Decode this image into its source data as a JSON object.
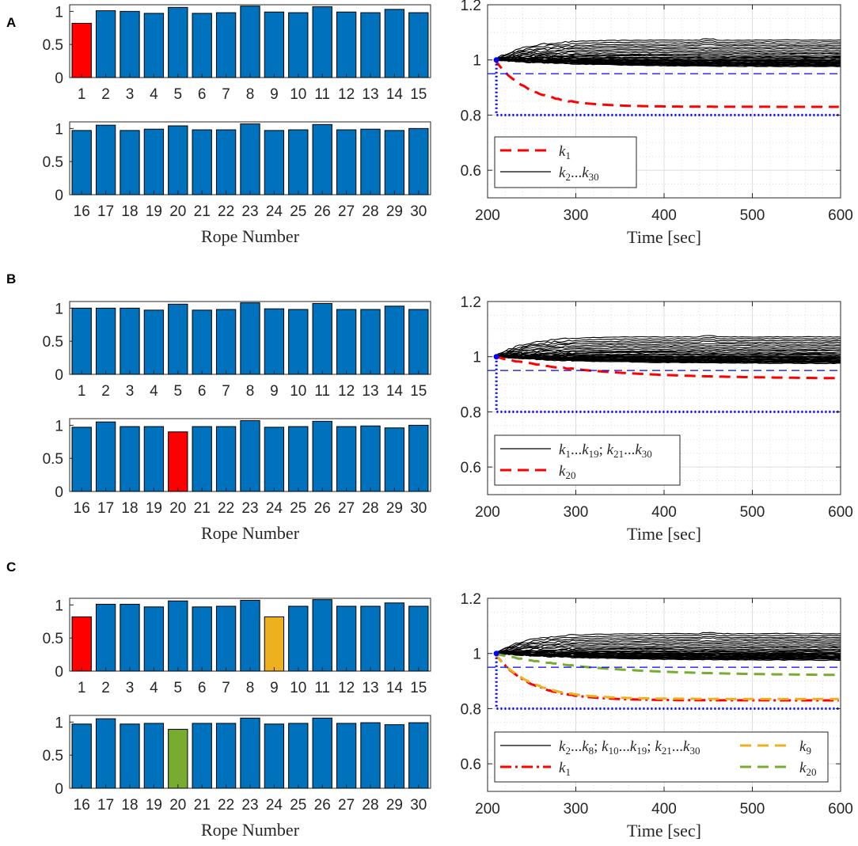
{
  "chart_data": [
    {
      "panel": "A",
      "type": "bar",
      "xlabel": "Rope Number",
      "yticks": [
        "0",
        "0.5",
        "1"
      ],
      "ylim": [
        0,
        1.1
      ],
      "top_categories": [
        "1",
        "2",
        "3",
        "4",
        "5",
        "6",
        "7",
        "8",
        "9",
        "10",
        "11",
        "12",
        "13",
        "14",
        "15"
      ],
      "top_values": [
        0.82,
        1.01,
        1.0,
        0.97,
        1.06,
        0.97,
        0.98,
        1.08,
        0.99,
        0.98,
        1.07,
        0.99,
        0.98,
        1.03,
        0.98
      ],
      "bottom_categories": [
        "16",
        "17",
        "18",
        "19",
        "20",
        "21",
        "22",
        "23",
        "24",
        "25",
        "26",
        "27",
        "28",
        "29",
        "30"
      ],
      "bottom_values": [
        0.97,
        1.05,
        0.97,
        0.99,
        1.04,
        0.98,
        0.98,
        1.07,
        0.97,
        0.98,
        1.06,
        0.98,
        0.99,
        0.97,
        1.0
      ],
      "highlights": [
        {
          "rope": "1",
          "color": "#ff0000"
        }
      ],
      "line": {
        "type": "line",
        "xlabel": "Time [sec]",
        "xlim": [
          200,
          600
        ],
        "ylim": [
          0.5,
          1.2
        ],
        "xticks": [
          "200",
          "300",
          "400",
          "500",
          "600"
        ],
        "yticks": [
          "0.6",
          "0.8",
          "1",
          "1.2"
        ],
        "upper_threshold": 0.95,
        "lower_threshold": 0.8,
        "legend": [
          {
            "style": "dash",
            "color": "#ff0000",
            "base": "k",
            "sub": "1"
          },
          {
            "style": "solid",
            "color": "#000000",
            "base": "k",
            "sub": "2",
            "tail_base": "k",
            "tail_sub": "30"
          }
        ],
        "series": [
          {
            "name": "k1",
            "color": "#ff0000",
            "style": "dash",
            "final": 0.83
          }
        ]
      }
    },
    {
      "panel": "B",
      "type": "bar",
      "xlabel": "Rope Number",
      "yticks": [
        "0",
        "0.5",
        "1"
      ],
      "ylim": [
        0,
        1.1
      ],
      "top_categories": [
        "1",
        "2",
        "3",
        "4",
        "5",
        "6",
        "7",
        "8",
        "9",
        "10",
        "11",
        "12",
        "13",
        "14",
        "15"
      ],
      "top_values": [
        1.0,
        1.0,
        1.0,
        0.97,
        1.06,
        0.97,
        0.98,
        1.08,
        0.99,
        0.98,
        1.07,
        0.98,
        0.98,
        1.03,
        0.98
      ],
      "bottom_categories": [
        "16",
        "17",
        "18",
        "19",
        "20",
        "21",
        "22",
        "23",
        "24",
        "25",
        "26",
        "27",
        "28",
        "29",
        "30"
      ],
      "bottom_values": [
        0.97,
        1.05,
        0.98,
        0.98,
        0.9,
        0.98,
        0.98,
        1.07,
        0.97,
        0.98,
        1.06,
        0.98,
        0.99,
        0.96,
        1.0
      ],
      "highlights": [
        {
          "rope": "20",
          "color": "#ff0000"
        }
      ],
      "line": {
        "type": "line",
        "xlabel": "Time [sec]",
        "xlim": [
          200,
          600
        ],
        "ylim": [
          0.5,
          1.2
        ],
        "xticks": [
          "200",
          "300",
          "400",
          "500",
          "600"
        ],
        "yticks": [
          "0.6",
          "0.8",
          "1",
          "1.2"
        ],
        "upper_threshold": 0.95,
        "lower_threshold": 0.8,
        "legend": [
          {
            "style": "solid",
            "color": "#000000",
            "base": "k",
            "sub": "1",
            "tail_base": "k",
            "tail_sub": "19",
            "extra": "; ",
            "extra_base": "k",
            "extra_sub": "21",
            "extra_tail_base": "k",
            "extra_tail_sub": "30"
          },
          {
            "style": "dash",
            "color": "#ff0000",
            "base": "k",
            "sub": "20"
          }
        ],
        "series": [
          {
            "name": "k20",
            "color": "#ff0000",
            "style": "dash",
            "final": 0.92
          }
        ]
      }
    },
    {
      "panel": "C",
      "type": "bar",
      "xlabel": "Rope Number",
      "yticks": [
        "0",
        "0.5",
        "1"
      ],
      "ylim": [
        0,
        1.1
      ],
      "top_categories": [
        "1",
        "2",
        "3",
        "4",
        "5",
        "6",
        "7",
        "8",
        "9",
        "10",
        "11",
        "12",
        "13",
        "14",
        "15"
      ],
      "top_values": [
        0.82,
        1.01,
        1.01,
        0.97,
        1.06,
        0.97,
        0.98,
        1.07,
        0.82,
        0.98,
        1.08,
        0.98,
        0.98,
        1.03,
        0.98
      ],
      "bottom_categories": [
        "16",
        "17",
        "18",
        "19",
        "20",
        "21",
        "22",
        "23",
        "24",
        "25",
        "26",
        "27",
        "28",
        "29",
        "30"
      ],
      "bottom_values": [
        0.97,
        1.05,
        0.97,
        0.98,
        0.89,
        0.98,
        0.98,
        1.06,
        0.97,
        0.98,
        1.06,
        0.98,
        0.99,
        0.96,
        0.99
      ],
      "highlights": [
        {
          "rope": "1",
          "color": "#ff0000"
        },
        {
          "rope": "9",
          "color": "#edb120"
        },
        {
          "rope": "20",
          "color": "#77ac30"
        }
      ],
      "line": {
        "type": "line",
        "xlabel": "Time [sec]",
        "xlim": [
          200,
          600
        ],
        "ylim": [
          0.5,
          1.2
        ],
        "xticks": [
          "200",
          "300",
          "400",
          "500",
          "600"
        ],
        "yticks": [
          "0.6",
          "0.8",
          "1",
          "1.2"
        ],
        "upper_threshold": 0.95,
        "lower_threshold": 0.8,
        "legend": [
          {
            "style": "solid",
            "color": "#000000",
            "base": "k",
            "sub": "2",
            "tail_base": "k",
            "tail_sub": "8",
            "extra": "; ",
            "extra_base": "k",
            "extra_sub": "10",
            "extra_tail_base": "k",
            "extra_tail_sub": "19",
            "extra2": "; ",
            "extra2_base": "k",
            "extra2_sub": "21",
            "extra2_tail_base": "k",
            "extra2_tail_sub": "30"
          },
          {
            "style": "dashdot",
            "color": "#ff0000",
            "base": "k",
            "sub": "1"
          },
          {
            "style": "dash",
            "color": "#edb120",
            "base": "k",
            "sub": "9"
          },
          {
            "style": "dash",
            "color": "#77ac30",
            "base": "k",
            "sub": "20"
          }
        ],
        "series": [
          {
            "name": "k1",
            "color": "#ff0000",
            "style": "dashdot",
            "final": 0.83
          },
          {
            "name": "k9",
            "color": "#edb120",
            "style": "dash",
            "final": 0.835
          },
          {
            "name": "k20",
            "color": "#77ac30",
            "style": "dash",
            "final": 0.92
          }
        ]
      }
    }
  ],
  "bar_color": "#0072bd",
  "ellipsis": "..."
}
